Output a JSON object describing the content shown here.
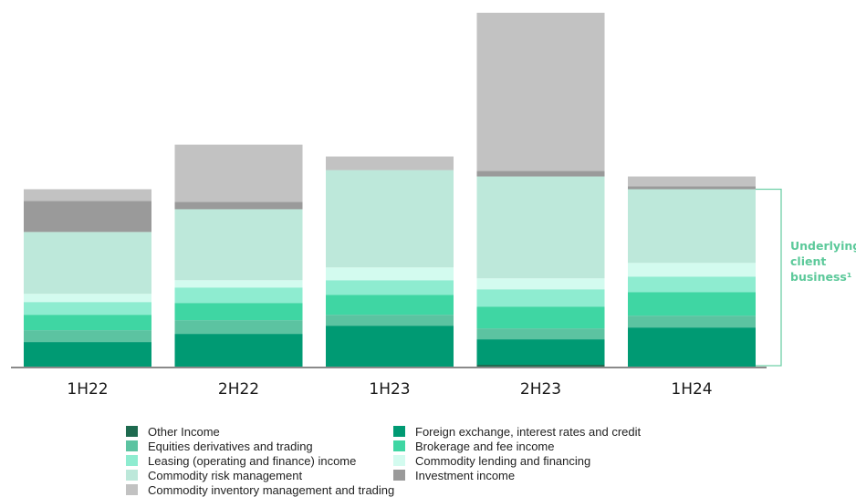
{
  "chart_data": {
    "type": "bar",
    "stacked": true,
    "categories": [
      "1H22",
      "2H22",
      "1H23",
      "2H23",
      "1H24"
    ],
    "series": [
      {
        "name": "Other Income",
        "color": "#1e6a4f",
        "values": [
          0,
          0,
          0,
          3,
          0
        ]
      },
      {
        "name": "Foreign exchange, interest rates and credit",
        "color": "#009a73",
        "values": [
          28,
          37,
          46,
          28,
          44
        ]
      },
      {
        "name": "Equities derivatives and trading",
        "color": "#5cc3a1",
        "values": [
          13,
          15,
          12,
          12,
          13
        ]
      },
      {
        "name": "Brokerage and fee income",
        "color": "#3fd6a3",
        "values": [
          17,
          19,
          22,
          24,
          26
        ]
      },
      {
        "name": "Leasing (operating and finance) income",
        "color": "#8eecd0",
        "values": [
          14,
          17,
          16,
          19,
          17
        ]
      },
      {
        "name": "Commodity lending and financing",
        "color": "#d3fbef",
        "values": [
          9,
          8,
          14,
          12,
          15
        ]
      },
      {
        "name": "Commodity risk management",
        "color": "#bde8da",
        "values": [
          68,
          78,
          107,
          112,
          81
        ]
      },
      {
        "name": "Investment income",
        "color": "#9a9a9a",
        "values": [
          34,
          8,
          0,
          6,
          3
        ]
      },
      {
        "name": "Commodity inventory management and trading",
        "color": "#c2c2c2",
        "values": [
          13,
          63,
          15,
          174,
          11
        ]
      }
    ],
    "ylim": [
      0,
      390
    ],
    "legend_position": "bottom",
    "annotation": {
      "bracket_category": "1H24",
      "label_lines": [
        "Underlying",
        "client",
        "business¹"
      ]
    }
  },
  "legend": {
    "left": [
      "Other Income",
      "Equities derivatives and trading",
      "Leasing (operating and finance) income",
      "Commodity risk management",
      "Commodity inventory management and trading"
    ],
    "right": [
      "Foreign exchange, interest rates and credit",
      "Brokerage and fee income",
      "Commodity lending and financing",
      "Investment income"
    ]
  }
}
